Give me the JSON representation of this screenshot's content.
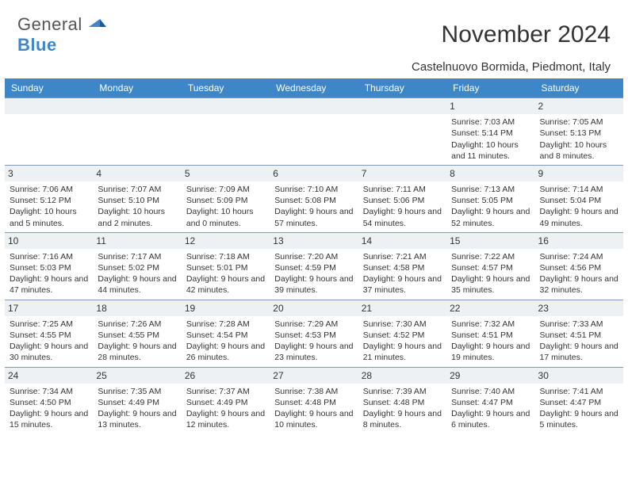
{
  "logo": {
    "line1": "General",
    "line2": "Blue"
  },
  "title": "November 2024",
  "subtitle": "Castelnuovo Bormida, Piedmont, Italy",
  "colors": {
    "header_bg": "#3d87c9",
    "header_text": "#ffffff",
    "daynum_bg": "#eef1f4",
    "row_border": "#7d9bb8",
    "body_text": "#333333",
    "logo_gray": "#555555",
    "logo_blue": "#3d87c9",
    "page_bg": "#ffffff"
  },
  "fontsizes": {
    "title": 30,
    "subtitle": 15,
    "weekday": 12,
    "daynum": 12,
    "cell": 10.5
  },
  "layout": {
    "columns": 7,
    "rows": 5,
    "first_day_column_index": 5
  },
  "weekday_headers": [
    "Sunday",
    "Monday",
    "Tuesday",
    "Wednesday",
    "Thursday",
    "Friday",
    "Saturday"
  ],
  "days": [
    {
      "n": "1",
      "sunrise": "7:03 AM",
      "sunset": "5:14 PM",
      "daylight": "10 hours and 11 minutes."
    },
    {
      "n": "2",
      "sunrise": "7:05 AM",
      "sunset": "5:13 PM",
      "daylight": "10 hours and 8 minutes."
    },
    {
      "n": "3",
      "sunrise": "7:06 AM",
      "sunset": "5:12 PM",
      "daylight": "10 hours and 5 minutes."
    },
    {
      "n": "4",
      "sunrise": "7:07 AM",
      "sunset": "5:10 PM",
      "daylight": "10 hours and 2 minutes."
    },
    {
      "n": "5",
      "sunrise": "7:09 AM",
      "sunset": "5:09 PM",
      "daylight": "10 hours and 0 minutes."
    },
    {
      "n": "6",
      "sunrise": "7:10 AM",
      "sunset": "5:08 PM",
      "daylight": "9 hours and 57 minutes."
    },
    {
      "n": "7",
      "sunrise": "7:11 AM",
      "sunset": "5:06 PM",
      "daylight": "9 hours and 54 minutes."
    },
    {
      "n": "8",
      "sunrise": "7:13 AM",
      "sunset": "5:05 PM",
      "daylight": "9 hours and 52 minutes."
    },
    {
      "n": "9",
      "sunrise": "7:14 AM",
      "sunset": "5:04 PM",
      "daylight": "9 hours and 49 minutes."
    },
    {
      "n": "10",
      "sunrise": "7:16 AM",
      "sunset": "5:03 PM",
      "daylight": "9 hours and 47 minutes."
    },
    {
      "n": "11",
      "sunrise": "7:17 AM",
      "sunset": "5:02 PM",
      "daylight": "9 hours and 44 minutes."
    },
    {
      "n": "12",
      "sunrise": "7:18 AM",
      "sunset": "5:01 PM",
      "daylight": "9 hours and 42 minutes."
    },
    {
      "n": "13",
      "sunrise": "7:20 AM",
      "sunset": "4:59 PM",
      "daylight": "9 hours and 39 minutes."
    },
    {
      "n": "14",
      "sunrise": "7:21 AM",
      "sunset": "4:58 PM",
      "daylight": "9 hours and 37 minutes."
    },
    {
      "n": "15",
      "sunrise": "7:22 AM",
      "sunset": "4:57 PM",
      "daylight": "9 hours and 35 minutes."
    },
    {
      "n": "16",
      "sunrise": "7:24 AM",
      "sunset": "4:56 PM",
      "daylight": "9 hours and 32 minutes."
    },
    {
      "n": "17",
      "sunrise": "7:25 AM",
      "sunset": "4:55 PM",
      "daylight": "9 hours and 30 minutes."
    },
    {
      "n": "18",
      "sunrise": "7:26 AM",
      "sunset": "4:55 PM",
      "daylight": "9 hours and 28 minutes."
    },
    {
      "n": "19",
      "sunrise": "7:28 AM",
      "sunset": "4:54 PM",
      "daylight": "9 hours and 26 minutes."
    },
    {
      "n": "20",
      "sunrise": "7:29 AM",
      "sunset": "4:53 PM",
      "daylight": "9 hours and 23 minutes."
    },
    {
      "n": "21",
      "sunrise": "7:30 AM",
      "sunset": "4:52 PM",
      "daylight": "9 hours and 21 minutes."
    },
    {
      "n": "22",
      "sunrise": "7:32 AM",
      "sunset": "4:51 PM",
      "daylight": "9 hours and 19 minutes."
    },
    {
      "n": "23",
      "sunrise": "7:33 AM",
      "sunset": "4:51 PM",
      "daylight": "9 hours and 17 minutes."
    },
    {
      "n": "24",
      "sunrise": "7:34 AM",
      "sunset": "4:50 PM",
      "daylight": "9 hours and 15 minutes."
    },
    {
      "n": "25",
      "sunrise": "7:35 AM",
      "sunset": "4:49 PM",
      "daylight": "9 hours and 13 minutes."
    },
    {
      "n": "26",
      "sunrise": "7:37 AM",
      "sunset": "4:49 PM",
      "daylight": "9 hours and 12 minutes."
    },
    {
      "n": "27",
      "sunrise": "7:38 AM",
      "sunset": "4:48 PM",
      "daylight": "9 hours and 10 minutes."
    },
    {
      "n": "28",
      "sunrise": "7:39 AM",
      "sunset": "4:48 PM",
      "daylight": "9 hours and 8 minutes."
    },
    {
      "n": "29",
      "sunrise": "7:40 AM",
      "sunset": "4:47 PM",
      "daylight": "9 hours and 6 minutes."
    },
    {
      "n": "30",
      "sunrise": "7:41 AM",
      "sunset": "4:47 PM",
      "daylight": "9 hours and 5 minutes."
    }
  ],
  "labels": {
    "sunrise": "Sunrise: ",
    "sunset": "Sunset: ",
    "daylight": "Daylight: "
  }
}
